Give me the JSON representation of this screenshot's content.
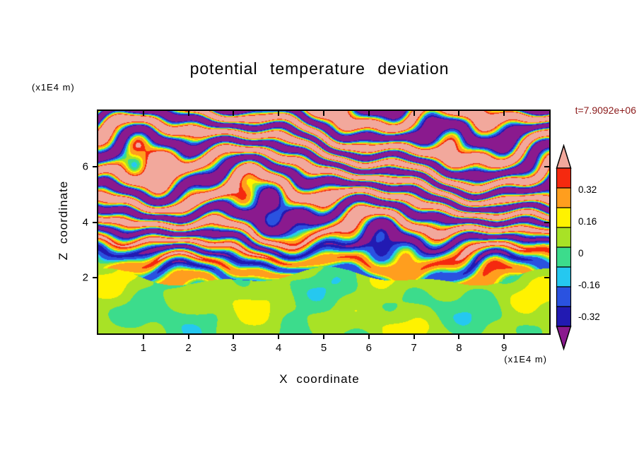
{
  "chart_data": {
    "type": "heatmap",
    "title": "potential temperature deviation",
    "time_label": "t=7.9092e+06",
    "annotation_color": "#8B1A1A",
    "xlabel": "X coordinate",
    "ylabel": "Z coordinate",
    "x_unit_label": "(x1E4 m)",
    "z_unit_label": "(x1E4 m)",
    "x_range": [
      0,
      10
    ],
    "z_range": [
      0,
      8
    ],
    "x_ticks": [
      1,
      2,
      3,
      4,
      5,
      6,
      7,
      8,
      9
    ],
    "z_ticks": [
      2,
      4,
      6
    ],
    "levels": [
      -0.4,
      -0.32,
      -0.16,
      -0.08,
      0,
      0.08,
      0.16,
      0.32,
      0.4
    ],
    "palette_low_to_high": [
      "#8A1A8E",
      "#221AB2",
      "#2A52E0",
      "#25C8F0",
      "#3CDC8C",
      "#A8E226",
      "#FFF200",
      "#FF9E1E",
      "#F5290F",
      "#F2A89C"
    ],
    "colorbar": {
      "tick_labels": [
        "0.32",
        "0.16",
        "0",
        "-0.16",
        "-0.32"
      ],
      "patch_colors_top_to_bottom": [
        "#F5290F",
        "#FF9E1E",
        "#FFF200",
        "#A8E226",
        "#3CDC8C",
        "#25C8F0",
        "#2A52E0",
        "#221AB2"
      ],
      "over_arrow_color": "#F2A89C",
      "under_arrow_color": "#8A1A8E"
    },
    "field_note": "stratified turbulent pink/purple bands with red-orange-yellow and cyan-blue fringes above z=2; calm green / yellow-green layer with sparse yellow and cyan patches below z=2"
  }
}
